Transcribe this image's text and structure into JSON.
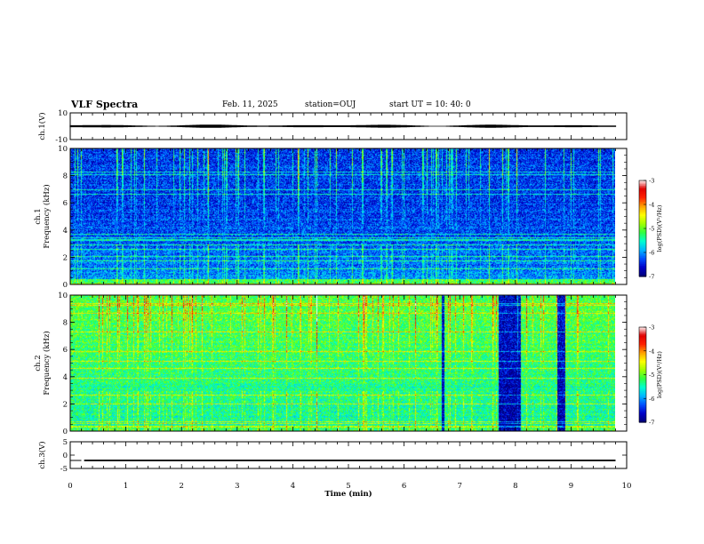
{
  "header": {
    "title": "VLF Spectra",
    "date": "Feb. 11, 2025",
    "station": "station=OUJ",
    "start": "start  UT  =   10: 40: 0"
  },
  "chart_data": [
    {
      "type": "line",
      "panel": "ch1-waveform",
      "ylabel": "ch.1(V)",
      "ylim": [
        -10,
        10
      ],
      "ytick_labels": [
        "10",
        "-10"
      ],
      "x_range_min": [
        0,
        10
      ],
      "data_extent_min": [
        0,
        9.8
      ],
      "amplitude_envelope_V": [
        -1.2,
        1.2
      ]
    },
    {
      "type": "heatmap",
      "panel": "ch1-spectrogram",
      "ylabel": "ch.1\nFrequency (kHz)",
      "ylim": [
        0,
        10
      ],
      "ytick_labels": [
        "0",
        "2",
        "4",
        "6",
        "8",
        "10"
      ],
      "x_range_min": [
        0,
        10
      ],
      "data_extent_min": [
        0,
        9.8
      ],
      "colorbar": {
        "label": "log(PSD)(V²/Hz)",
        "range": [
          -7,
          -3
        ],
        "tick_labels": [
          "-3",
          "-4",
          "-5",
          "-6",
          "-7"
        ]
      }
    },
    {
      "type": "heatmap",
      "panel": "ch2-spectrogram",
      "ylabel": "ch.2\nFrequency (kHz)",
      "ylim": [
        0,
        10
      ],
      "ytick_labels": [
        "0",
        "2",
        "4",
        "6",
        "8",
        "10"
      ],
      "x_range_min": [
        0,
        10
      ],
      "data_extent_min": [
        0,
        9.8
      ],
      "dark_intervals_min": [
        [
          6.68,
          6.73
        ],
        [
          7.7,
          8.1
        ],
        [
          8.75,
          8.9
        ]
      ],
      "colorbar": {
        "label": "log(PSD)(V²/Hz)",
        "range": [
          -7,
          -3
        ],
        "tick_labels": [
          "-3",
          "-4",
          "-5",
          "-6",
          "-7"
        ]
      }
    },
    {
      "type": "line",
      "panel": "ch3-waveform",
      "ylabel": "ch.3(V)",
      "ylim": [
        -5,
        5
      ],
      "ytick_labels": [
        "5",
        "0",
        "-5"
      ],
      "xlabel": "Time  (min)",
      "x_range_min": [
        0,
        10
      ],
      "xtick_labels": [
        "0",
        "1",
        "2",
        "3",
        "4",
        "5",
        "6",
        "7",
        "8",
        "9",
        "10"
      ],
      "segments": [
        {
          "x": [
            0,
            0.2
          ],
          "y": [
            -2,
            -2
          ]
        },
        {
          "x": [
            0.25,
            9.8
          ],
          "y": [
            -2.3,
            -1.7
          ]
        }
      ]
    }
  ],
  "colors": {
    "colormap": [
      "#00007a",
      "#0000c8",
      "#0050ff",
      "#00b8ff",
      "#00ffd0",
      "#30ff40",
      "#a0ff00",
      "#ffff00",
      "#ffa000",
      "#ff2000",
      "#e00000",
      "#ffffff"
    ]
  }
}
